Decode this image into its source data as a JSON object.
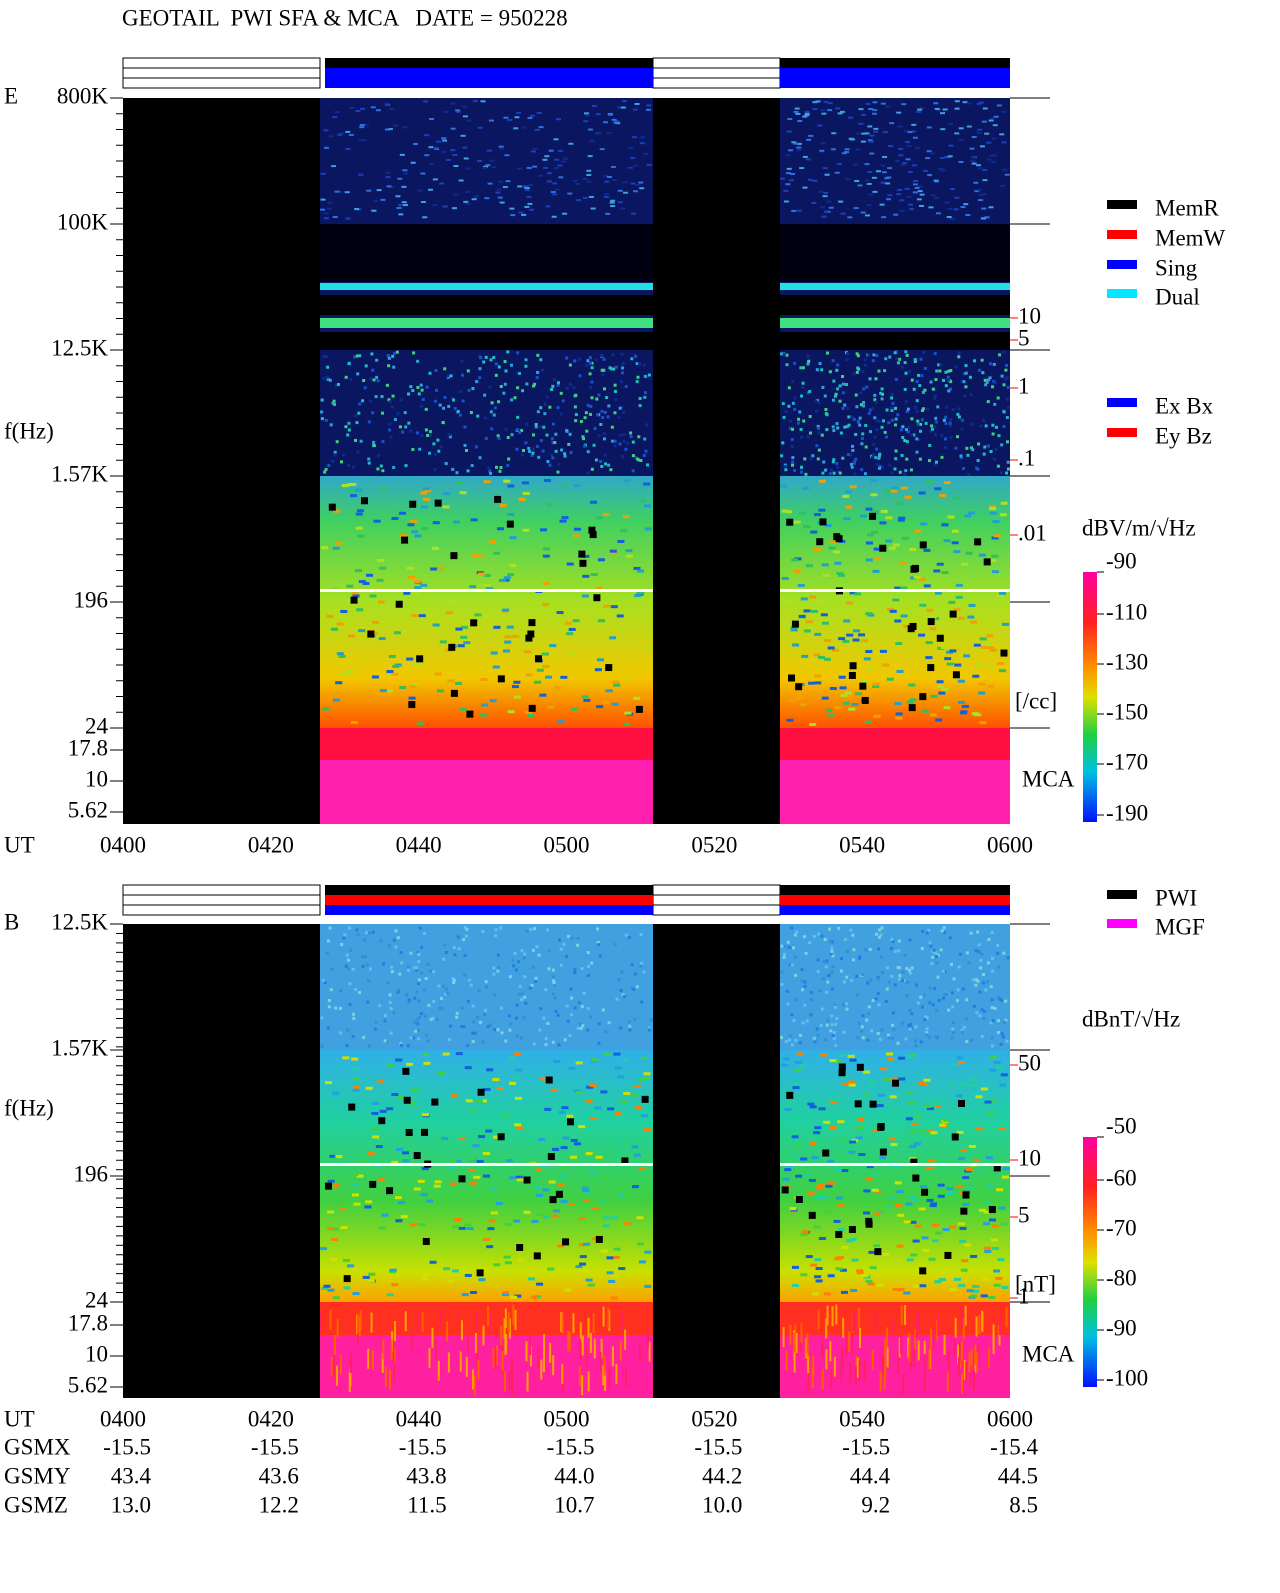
{
  "header": {
    "title": "GEOTAIL  PWI SFA & MCA   DATE = 950228"
  },
  "legend_mode": [
    {
      "label": "MemR",
      "color": "#000000"
    },
    {
      "label": "MemW",
      "color": "#ff0000"
    },
    {
      "label": "Sing",
      "color": "#0000ff"
    },
    {
      "label": "Dual",
      "color": "#00e8ff"
    }
  ],
  "legend_antenna": [
    {
      "label": "Ex Bx",
      "color": "#0000ff"
    },
    {
      "label": "Ey Bz",
      "color": "#ff0000"
    }
  ],
  "legend_instrument": [
    {
      "label": "PWI",
      "color": "#000000"
    },
    {
      "label": "MGF",
      "color": "#ff00ff"
    }
  ],
  "panels": [
    {
      "component": "E",
      "y_label": "f(Hz)",
      "time_axis_label": "UT",
      "y_ticks": [
        "800K",
        "100K",
        "12.5K",
        "1.57K",
        "196",
        "24",
        "17.8",
        "10",
        "5.62"
      ],
      "time_ticks": [
        "0400",
        "0420",
        "0440",
        "0500",
        "0520",
        "0540",
        "0600"
      ],
      "right_ticks": [
        "10",
        "5",
        "1",
        ".1",
        ".01"
      ],
      "right_unit": "[/cc]",
      "mca_label": "MCA",
      "colorbar_unit": "dBV/m/√Hz",
      "colorbar_ticks": [
        "-90",
        "-110",
        "-130",
        "-150",
        "-170",
        "-190"
      ]
    },
    {
      "component": "B",
      "y_label": "f(Hz)",
      "time_axis_label": "UT",
      "y_ticks": [
        "12.5K",
        "1.57K",
        "196",
        "24",
        "17.8",
        "10",
        "5.62"
      ],
      "time_ticks": [
        "0400",
        "0420",
        "0440",
        "0500",
        "0520",
        "0540",
        "0600"
      ],
      "right_ticks": [
        "50",
        "10",
        "5",
        "1"
      ],
      "right_unit": "[nT]",
      "mca_label": "MCA",
      "colorbar_unit": "dBnT/√Hz",
      "colorbar_ticks": [
        "-50",
        "-60",
        "-70",
        "-80",
        "-90",
        "-100"
      ]
    }
  ],
  "orbit": {
    "rows": [
      {
        "label": "GSMX",
        "values": [
          "-15.5",
          "-15.5",
          "-15.5",
          "-15.5",
          "-15.5",
          "-15.5",
          "-15.4"
        ]
      },
      {
        "label": "GSMY",
        "values": [
          "43.4",
          "43.6",
          "43.8",
          "44.0",
          "44.2",
          "44.4",
          "44.5"
        ]
      },
      {
        "label": "GSMZ",
        "values": [
          "13.0",
          "12.2",
          "11.5",
          "10.7",
          "10.0",
          "9.2",
          "8.5"
        ]
      }
    ]
  }
}
